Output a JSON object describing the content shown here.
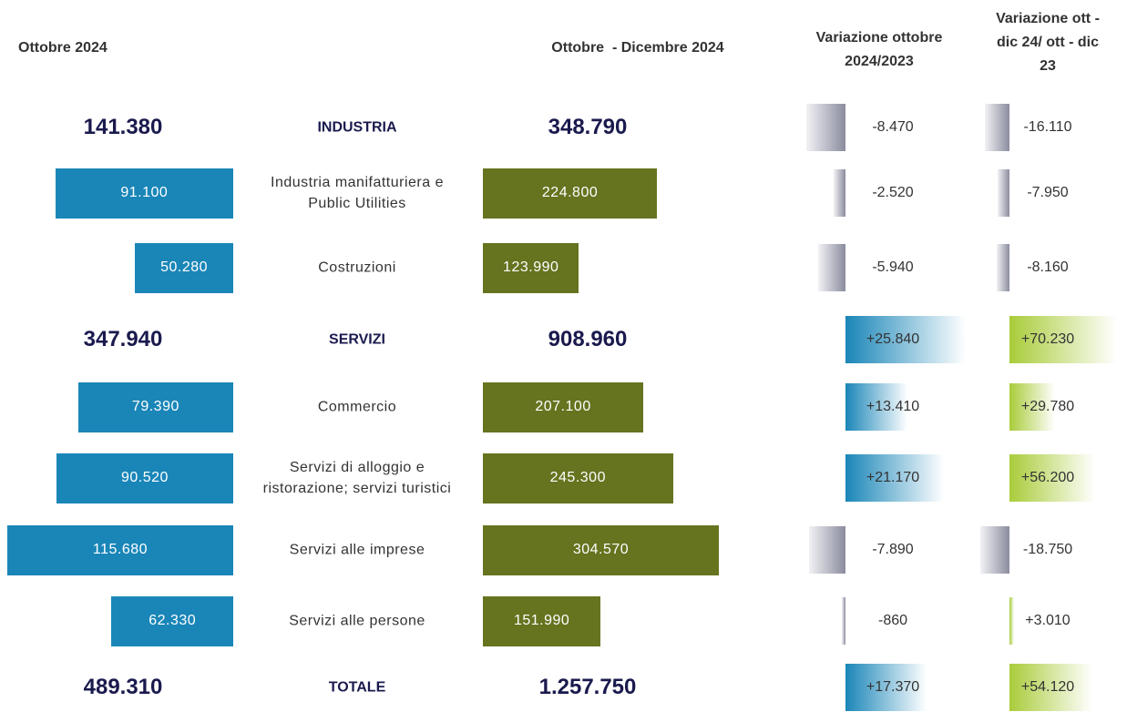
{
  "chart_data": {
    "type": "butterfly",
    "categories": [
      "INDUSTRIA",
      "Industria manifatturiera e Public Utilities",
      "Costruzioni",
      "SERVIZI",
      "Commercio",
      "Servizi di alloggio e ristorazione; servizi turistici",
      "Servizi alle imprese",
      "Servizi alle persone",
      "TOTALE"
    ],
    "bold": [
      true,
      false,
      false,
      true,
      false,
      false,
      false,
      false,
      true
    ],
    "negative_color": "#8a8c9e",
    "series": [
      {
        "name": "Ottobre 2024",
        "color": "#1a86b8",
        "values": [
          141380,
          91100,
          50280,
          347940,
          79390,
          90520,
          115680,
          62330,
          489310
        ],
        "value_labels": [
          "141.380",
          "91.100",
          "50.280",
          "347.940",
          "79.390",
          "90.520",
          "115.680",
          "62.330",
          "489.310"
        ]
      },
      {
        "name": "Ottobre  - Dicembre 2024",
        "color": "#66731f",
        "values": [
          348790,
          224800,
          123990,
          908960,
          207100,
          245300,
          304570,
          151990,
          1257750
        ],
        "value_labels": [
          "348.790",
          "224.800",
          "123.990",
          "908.960",
          "207.100",
          "245.300",
          "304.570",
          "151.990",
          "1.257.750"
        ]
      },
      {
        "name": "Variazione ottobre 2024/2023",
        "color": "#1a86b8",
        "values": [
          -8470,
          -2520,
          -5940,
          25840,
          13410,
          21170,
          -7890,
          -860,
          17370
        ],
        "value_labels": [
          "-8.470",
          "-2.520",
          "-5.940",
          "+25.840",
          "+13.410",
          "+21.170",
          "-7.890",
          "-860",
          "+17.370"
        ]
      },
      {
        "name": "Variazione ott - dic 24/ ott - dic 23",
        "color": "#a9cc3a",
        "values": [
          -16110,
          -7950,
          -8160,
          70230,
          29780,
          56200,
          -18750,
          3010,
          54120
        ],
        "value_labels": [
          "-16.110",
          "-7.950",
          "-8.160",
          "+70.230",
          "+29.780",
          "+56.200",
          "-18.750",
          "+3.010",
          "+54.120"
        ]
      }
    ]
  }
}
